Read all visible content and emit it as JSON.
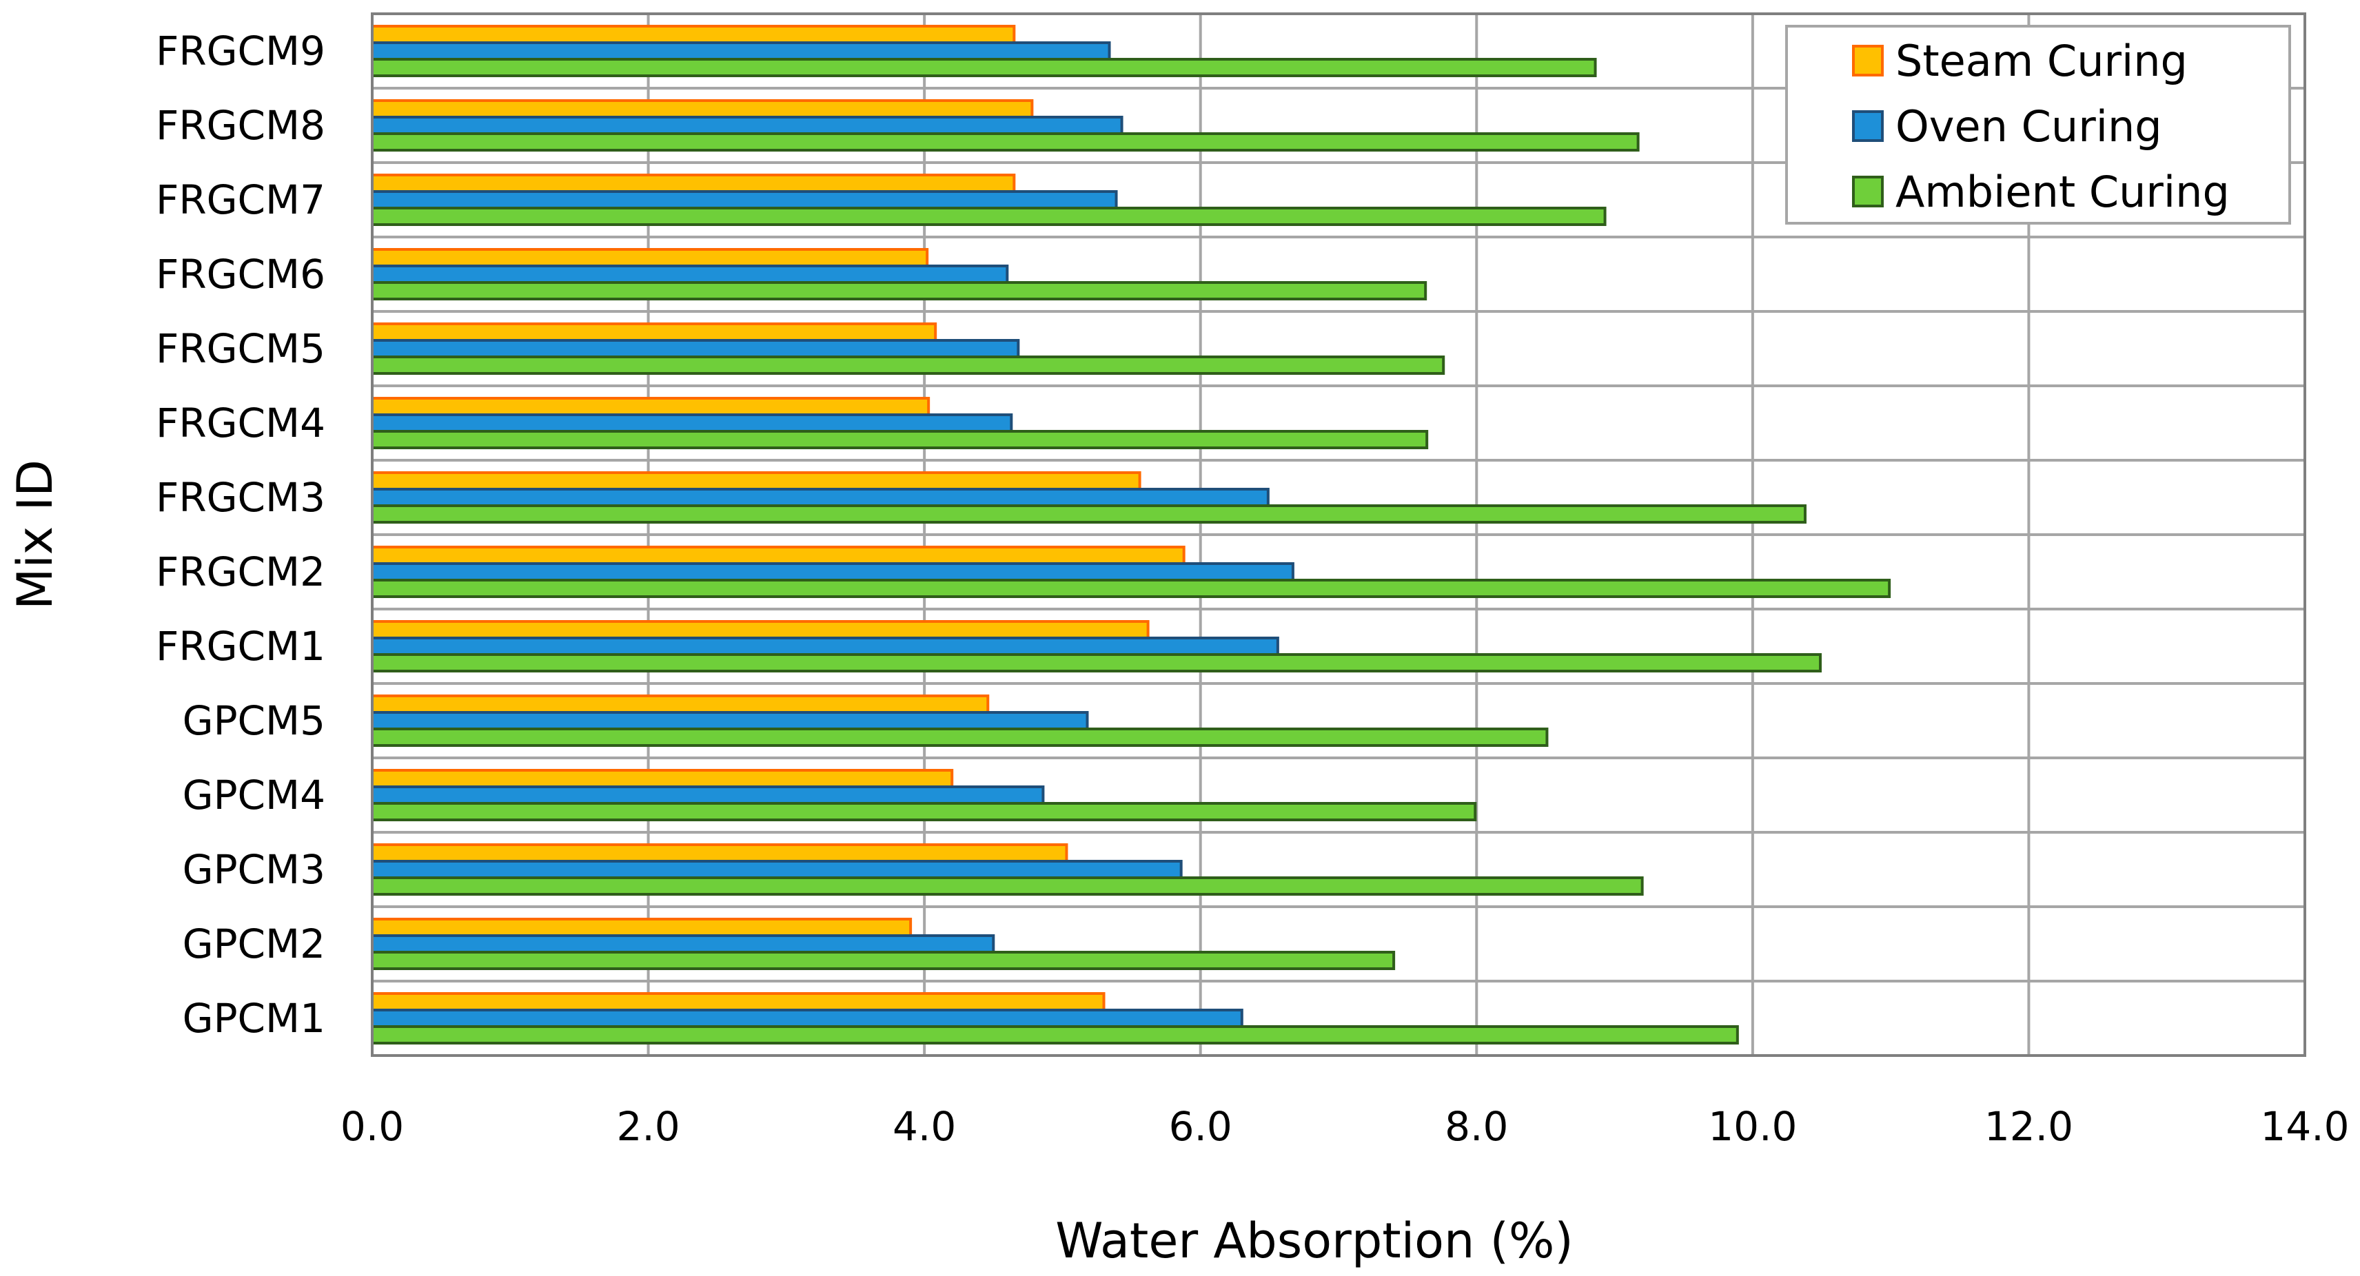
{
  "chart_data": {
    "type": "bar",
    "orientation": "horizontal",
    "title": "",
    "xlabel": "Water Absorption (%)",
    "ylabel": "Mix ID",
    "xlim": [
      0,
      14
    ],
    "x_ticks": [
      "0.0",
      "2.0",
      "4.0",
      "6.0",
      "8.0",
      "10.0",
      "12.0",
      "14.0"
    ],
    "grid": true,
    "legend_position": "top-right",
    "categories": [
      "GPCM1",
      "GPCM2",
      "GPCM3",
      "GPCM4",
      "GPCM5",
      "FRGCM1",
      "FRGCM2",
      "FRGCM3",
      "FRGCM4",
      "FRGCM5",
      "FRGCM6",
      "FRGCM7",
      "FRGCM8",
      "FRGCM9"
    ],
    "series": [
      {
        "name": "Steam Curing",
        "fill": "#FFC000",
        "stroke": "#FF6A00",
        "values": [
          5.3,
          3.9,
          5.03,
          4.2,
          4.46,
          5.62,
          5.88,
          5.56,
          4.03,
          4.08,
          4.02,
          4.65,
          4.78,
          4.65
        ]
      },
      {
        "name": "Oven Curing",
        "fill": "#1E90D8",
        "stroke": "#1F4E79",
        "values": [
          6.3,
          4.5,
          5.86,
          4.86,
          5.18,
          6.56,
          6.67,
          6.49,
          4.63,
          4.68,
          4.6,
          5.39,
          5.43,
          5.34
        ]
      },
      {
        "name": "Ambient Curing",
        "fill": "#6FCF3A",
        "stroke": "#2F5E1A",
        "values": [
          9.89,
          7.4,
          9.2,
          7.99,
          8.51,
          10.49,
          10.99,
          10.38,
          7.64,
          7.76,
          7.63,
          8.93,
          9.17,
          8.86
        ]
      }
    ]
  }
}
